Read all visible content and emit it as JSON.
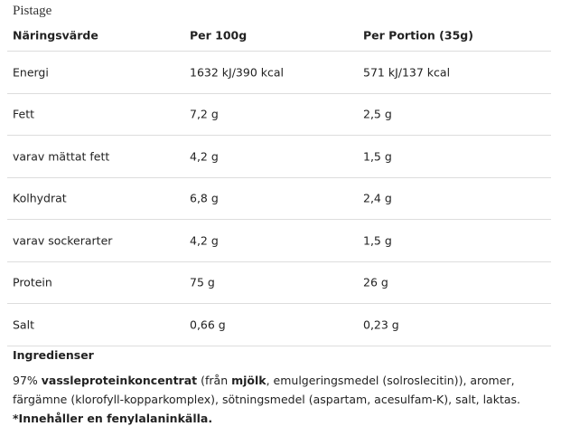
{
  "title": "Pistage",
  "table": {
    "header": [
      "Näringsvärde",
      "Per 100g",
      "Per Portion (35g)"
    ],
    "rows": [
      [
        "Energi",
        "1632 kJ/390 kcal",
        "571 kJ/137 kcal"
      ],
      [
        "Fett",
        "7,2 g",
        "2,5 g"
      ],
      [
        "varav mättat fett",
        "4,2 g",
        "1,5 g"
      ],
      [
        "Kolhydrat",
        "6,8 g",
        "2,4 g"
      ],
      [
        "varav sockerarter",
        "4,2 g",
        "1,5 g"
      ],
      [
        "Protein",
        "75 g",
        "26 g"
      ],
      [
        "Salt",
        "0,66 g",
        "0,23 g"
      ]
    ]
  },
  "ingredients": {
    "heading": "Ingredienser",
    "segments": [
      {
        "text": "97% ",
        "bold": false
      },
      {
        "text": "vassleproteinkoncentrat",
        "bold": true
      },
      {
        "text": " (från ",
        "bold": false
      },
      {
        "text": "mjölk",
        "bold": true
      },
      {
        "text": ", emulgeringsmedel (solroslecitin)), aromer, färgämne (klorofyll-kopparkomplex), sötningsmedel (aspartam, acesulfam-K), salt, laktas. ",
        "bold": false
      },
      {
        "text": "*Innehåller en fenylalaninkälla.",
        "bold": true
      }
    ]
  }
}
